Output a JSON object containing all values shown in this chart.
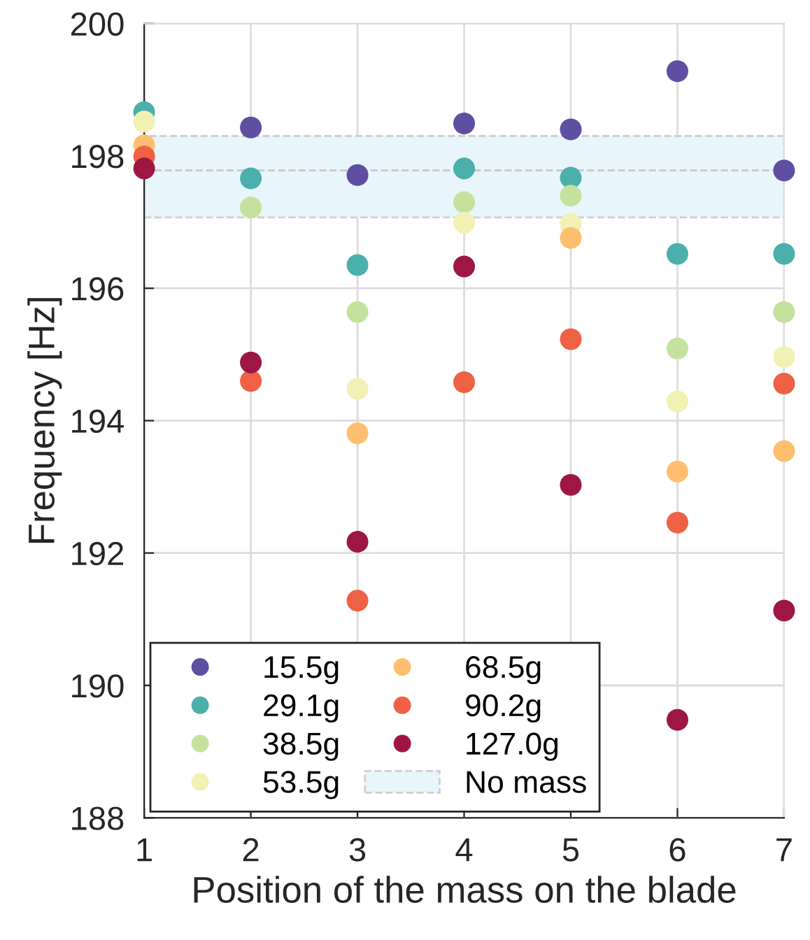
{
  "chart_data": {
    "type": "scatter",
    "xlabel": "Position of the mass on the blade",
    "ylabel": "Frequency [Hz]",
    "x": [
      1,
      2,
      3,
      4,
      5,
      6,
      7
    ],
    "xlim": [
      1,
      7
    ],
    "xticks": [
      1,
      2,
      3,
      4,
      5,
      6,
      7
    ],
    "ylim": [
      188,
      200
    ],
    "yticks": [
      188,
      190,
      192,
      194,
      196,
      198,
      200
    ],
    "grid": true,
    "legend": "bottom left",
    "marker": "circle",
    "series": [
      {
        "name": "15.5g",
        "color": "#5e4fa2",
        "values": [
          null,
          198.43,
          197.71,
          198.49,
          198.4,
          199.28,
          197.78
        ]
      },
      {
        "name": "29.1g",
        "color": "#4bb0ab",
        "values": [
          198.66,
          197.66,
          196.35,
          197.81,
          197.67,
          196.52,
          196.52
        ]
      },
      {
        "name": "38.5g",
        "color": "#c4e29e",
        "values": [
          null,
          197.22,
          195.64,
          197.3,
          197.4,
          195.09,
          195.64
        ]
      },
      {
        "name": "53.5g",
        "color": "#f2f0b2",
        "values": [
          198.52,
          null,
          194.48,
          196.99,
          196.97,
          194.29,
          194.96
        ]
      },
      {
        "name": "68.5g",
        "color": "#fdbf6f",
        "values": [
          198.16,
          null,
          193.81,
          null,
          196.76,
          193.23,
          193.54
        ]
      },
      {
        "name": "90.2g",
        "color": "#ee6145",
        "values": [
          197.99,
          194.6,
          191.28,
          194.58,
          195.23,
          192.46,
          194.56
        ]
      },
      {
        "name": "127.0g",
        "color": "#9e1744",
        "values": [
          197.81,
          194.88,
          192.17,
          196.33,
          193.03,
          189.48,
          191.13
        ]
      }
    ],
    "bands": [
      {
        "axis": "y",
        "from": 197.07,
        "to": 198.3,
        "label": "No mass",
        "color": "#e8f5fb"
      }
    ],
    "ref_lines": [
      {
        "axis": "y",
        "value": 197.78,
        "color": "#c8c8c8",
        "line_style": "dashed"
      }
    ]
  }
}
